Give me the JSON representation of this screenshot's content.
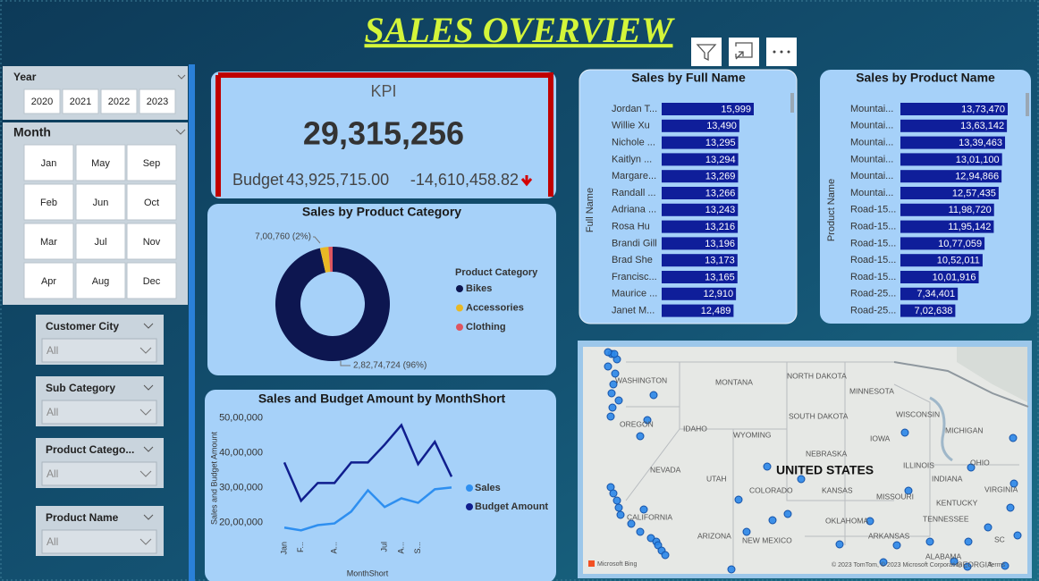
{
  "title": "SALES OVERVIEW",
  "slicers": {
    "year": {
      "label": "Year",
      "options": [
        "2020",
        "2021",
        "2022",
        "2023"
      ]
    },
    "month": {
      "label": "Month",
      "options": [
        "Jan",
        "May",
        "Sep",
        "Feb",
        "Jun",
        "Oct",
        "Mar",
        "Jul",
        "Nov",
        "Apr",
        "Aug",
        "Dec"
      ]
    },
    "dropdowns": [
      {
        "label": "Customer City",
        "value": "All"
      },
      {
        "label": "Sub Category",
        "value": "All"
      },
      {
        "label": "Product Catego...",
        "value": "All"
      },
      {
        "label": "Product Name",
        "value": "All"
      }
    ]
  },
  "kpi": {
    "title": "KPI",
    "value": "29,315,256",
    "budget_label": "Budget",
    "budget": "43,925,715.00",
    "variance": "-14,610,458.82"
  },
  "chart_data": [
    {
      "type": "pie",
      "title": "Sales by Product Category",
      "legend_title": "Product Category",
      "categories": [
        "Bikes",
        "Accessories",
        "Clothing"
      ],
      "values": [
        28274724,
        700760,
        339772
      ],
      "value_labels": [
        "2,82,74,724 (96%)",
        "7,00,760 (2%)",
        null
      ],
      "colors": [
        "#0d1650",
        "#e8b824",
        "#de5660"
      ]
    },
    {
      "type": "bar",
      "title": "Sales by Full Name",
      "y_label": "Full Name",
      "color": "#0f1e9a",
      "categories": [
        "Jordan T...",
        "Willie Xu",
        "Nichole ...",
        "Kaitlyn ...",
        "Margare...",
        "Randall ...",
        "Adriana ...",
        "Rosa Hu",
        "Brandi Gill",
        "Brad She",
        "Francisc...",
        "Maurice ...",
        "Janet M..."
      ],
      "values": [
        15999,
        13490,
        13295,
        13294,
        13269,
        13266,
        13243,
        13216,
        13196,
        13173,
        13165,
        12910,
        12489
      ],
      "value_labels": [
        "15,999",
        "13,490",
        "13,295",
        "13,294",
        "13,269",
        "13,266",
        "13,243",
        "13,216",
        "13,196",
        "13,173",
        "13,165",
        "12,910",
        "12,489"
      ]
    },
    {
      "type": "bar",
      "title": "Sales by Product Name",
      "y_label": "Product Name",
      "color": "#0f1e9a",
      "categories": [
        "Mountai...",
        "Mountai...",
        "Mountai...",
        "Mountai...",
        "Mountai...",
        "Mountai...",
        "Road-15...",
        "Road-15...",
        "Road-15...",
        "Road-15...",
        "Road-15...",
        "Road-25...",
        "Road-25..."
      ],
      "values": [
        1373470,
        1363142,
        1339463,
        1301100,
        1294866,
        1257435,
        1198720,
        1195142,
        1077059,
        1052011,
        1001916,
        734401,
        702638
      ],
      "value_labels": [
        "13,73,470",
        "13,63,142",
        "13,39,463",
        "13,01,100",
        "12,94,866",
        "12,57,435",
        "11,98,720",
        "11,95,142",
        "10,77,059",
        "10,52,011",
        "10,01,916",
        "7,34,401",
        "7,02,638"
      ]
    },
    {
      "type": "line",
      "title": "Sales and Budget Amount by MonthShort",
      "x_label": "MonthShort",
      "y_label": "Sales and Budget Amount",
      "categories": [
        "Jan",
        "F...",
        null,
        "A...",
        null,
        null,
        "Jul",
        "A...",
        "S...",
        null,
        null
      ],
      "ylim": [
        1600000,
        5200000
      ],
      "yticks": [
        {
          "value": 2000000,
          "label": "20,00,000"
        },
        {
          "value": 3000000,
          "label": "30,00,000"
        },
        {
          "value": 4000000,
          "label": "40,00,000"
        },
        {
          "value": 5000000,
          "label": "50,00,000"
        }
      ],
      "series": [
        {
          "name": "Sales",
          "color": "#2e8ff0",
          "values": [
            1850000,
            1770000,
            1920000,
            1970000,
            2310000,
            2920000,
            2440000,
            2690000,
            2560000,
            2950000,
            3000000
          ]
        },
        {
          "name": "Budget Amount",
          "color": "#101e8e",
          "values": [
            3720000,
            2620000,
            3130000,
            3130000,
            3720000,
            3720000,
            4230000,
            4790000,
            3670000,
            4310000,
            3310000
          ]
        }
      ]
    }
  ],
  "map": {
    "labels": [
      "NORTH DAKOTA",
      "MINNESOTA",
      "MONTANA",
      "WASHINGTON",
      "SOUTH DAKOTA",
      "WISCONSIN",
      "OREGON",
      "IDAHO",
      "WYOMING",
      "IOWA",
      "MICHIGAN",
      "NEBRASKA",
      "NEVADA",
      "UTAH",
      "UNITED STATES",
      "ILLINOIS",
      "OHIO",
      "INDIANA",
      "COLORADO",
      "KANSAS",
      "MISSOURI",
      "VIRGINIA",
      "KENTUCKY",
      "CALIFORNIA",
      "OKLAHOMA",
      "TENNESSEE",
      "ARIZONA",
      "NEW MEXICO",
      "ARKANSAS",
      "SC",
      "ALABAMA",
      "GEORGIA"
    ],
    "logo": "Microsoft Bing",
    "attribution": "© 2023 TomTom, © 2023 Microsoft Corporation",
    "terms": "Terms"
  }
}
